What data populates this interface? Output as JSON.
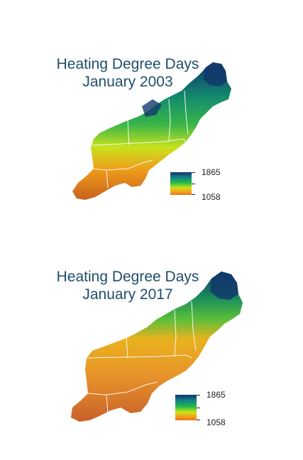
{
  "panels": [
    {
      "id": "2003",
      "title_line1": "Heating Degree Days",
      "title_line2": "January 2003",
      "legend": {
        "max_label": "1865",
        "min_label": "1058"
      },
      "color_regions": {
        "north": "#123a6a",
        "northeast": "#1a8a6a",
        "central": "#39b54a",
        "midsouth": "#c9e020",
        "south": "#e77e1e"
      }
    },
    {
      "id": "2017",
      "title_line1": "Heating Degree Days",
      "title_line2": "January 2017",
      "legend": {
        "max_label": "1865",
        "min_label": "1058"
      },
      "color_regions": {
        "north": "#123a6a",
        "northeast": "#2ea84a",
        "central": "#e3a21e",
        "midsouth": "#e9962a",
        "south": "#d9702a"
      }
    }
  ],
  "legend_colors": [
    "#12316e",
    "#13818a",
    "#1eb84a",
    "#c8e21a",
    "#f3a41a",
    "#e7731c"
  ]
}
